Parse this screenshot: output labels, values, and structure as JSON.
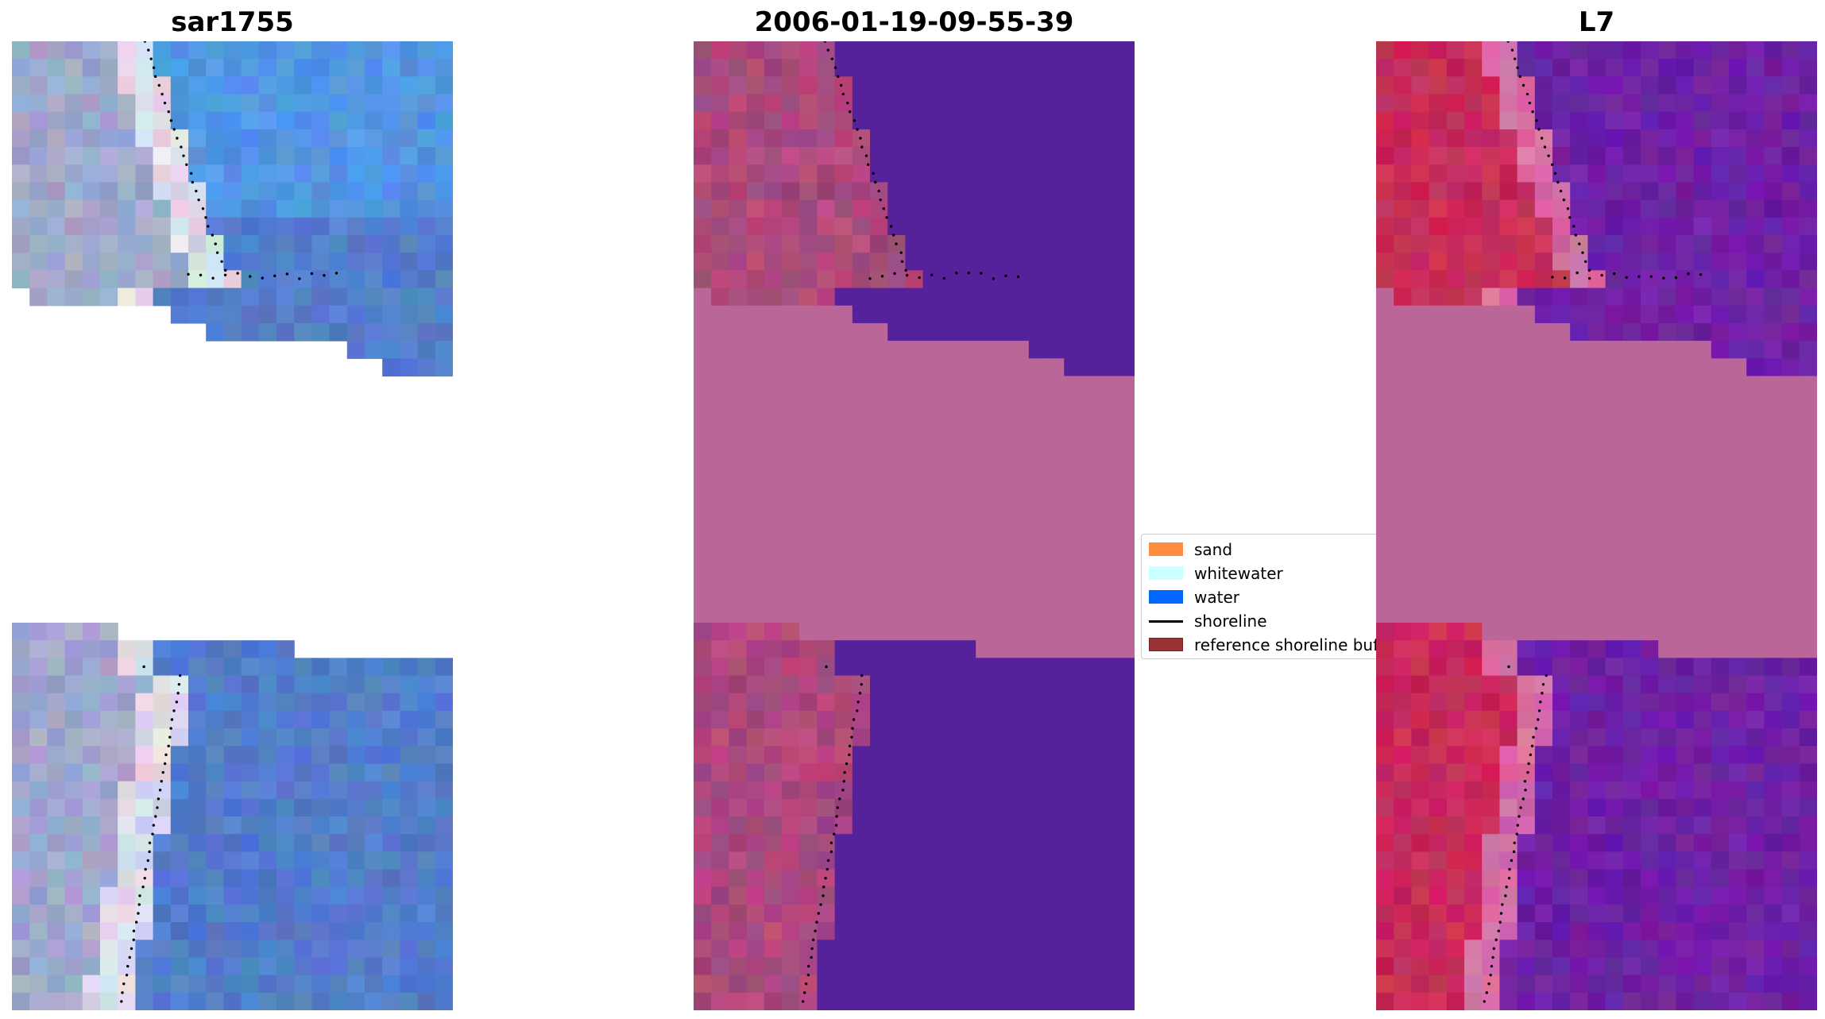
{
  "figure": {
    "panels": [
      {
        "title": "sar1755",
        "kind": "rgb"
      },
      {
        "title": "2006-01-19-09-55-39",
        "kind": "classified"
      },
      {
        "title": "L7",
        "kind": "mndwi"
      }
    ]
  },
  "legend": {
    "items": [
      {
        "label": "sand",
        "color": "#ff8c40",
        "kind": "patch"
      },
      {
        "label": "whitewater",
        "color": "#ccffff",
        "kind": "patch"
      },
      {
        "label": "water",
        "color": "#0066ff",
        "kind": "patch"
      },
      {
        "label": "shoreline",
        "color": "#000000",
        "kind": "line"
      },
      {
        "label": "reference shoreline buffer",
        "color": "#993333",
        "kind": "patch"
      }
    ]
  },
  "colors": {
    "nodata_pink": "#bb6699",
    "classified_water_purple": "#55229b",
    "rgb_water_blue": "#4a74b8",
    "mndwi_purple": "#6a1ba0",
    "mndwi_red": "#c41f55"
  }
}
